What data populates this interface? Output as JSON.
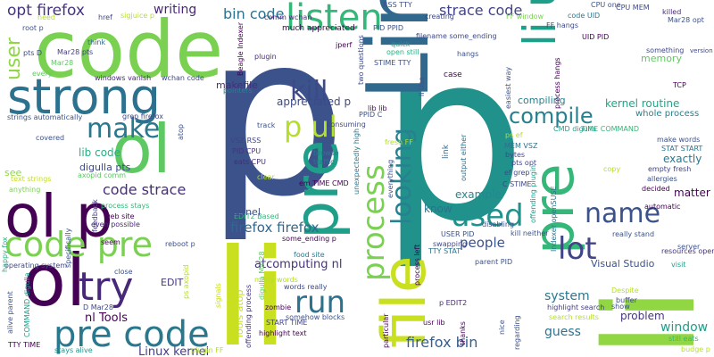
{
  "cloud": {
    "words": [
      {
        "text": "p",
        "color": "#3b528b"
      },
      {
        "text": "p",
        "color": "#21918c"
      },
      {
        "text": "li",
        "color": "#c8e020"
      },
      {
        "text": "li",
        "color": "#90d743"
      },
      {
        "text": "code",
        "color": "#7ad151"
      },
      {
        "text": "Linux",
        "color": "#31688e"
      },
      {
        "text": "ol",
        "color": "#5ec962"
      },
      {
        "text": "ol",
        "color": "#440154"
      },
      {
        "text": "ol p",
        "color": "#440154"
      },
      {
        "text": "pre",
        "color": "#1f9e89"
      },
      {
        "text": "pre",
        "color": "#35b779"
      },
      {
        "text": "strong",
        "color": "#2c728e"
      },
      {
        "text": "code pre",
        "color": "#7ad151"
      },
      {
        "text": "pre code",
        "color": "#2a788e"
      },
      {
        "text": "file",
        "color": "#c8e020"
      },
      {
        "text": "try",
        "color": "#482878"
      },
      {
        "text": "li ul",
        "color": "#1f9e89"
      },
      {
        "text": "listen",
        "color": "#35b779"
      },
      {
        "text": "kill",
        "color": "#3e4989"
      },
      {
        "text": "make",
        "color": "#2a788e"
      },
      {
        "text": "compile",
        "color": "#27808e"
      },
      {
        "text": "p ul",
        "color": "#b5de2b"
      },
      {
        "text": "run",
        "color": "#2c728e"
      },
      {
        "text": "process",
        "color": "#7ad151"
      },
      {
        "text": "looking",
        "color": "#26828e"
      },
      {
        "text": "used",
        "color": "#21918c"
      },
      {
        "text": "name",
        "color": "#3b528b"
      },
      {
        "text": "lot",
        "color": "#414487"
      },
      {
        "text": "user",
        "color": "#90d743"
      },
      {
        "text": "opt firefox",
        "color": "#46337e"
      },
      {
        "text": "writing",
        "color": "#482878"
      },
      {
        "text": "bin code",
        "color": "#2c728e"
      },
      {
        "text": "strace code",
        "color": "#414487"
      },
      {
        "text": "code strace",
        "color": "#472d7b"
      },
      {
        "text": "firefox firefox",
        "color": "#31688e"
      },
      {
        "text": "firefox bin",
        "color": "#355f8d"
      },
      {
        "text": "nl Tools",
        "color": "#440154"
      },
      {
        "text": "Linux kernel",
        "color": "#433e85"
      },
      {
        "text": "atcomputing nl",
        "color": "#46337e"
      },
      {
        "text": "people",
        "color": "#3b528b"
      },
      {
        "text": "system",
        "color": "#2a788e"
      },
      {
        "text": "guess",
        "color": "#2c728e"
      },
      {
        "text": "window",
        "color": "#1f9e89"
      },
      {
        "text": "problem",
        "color": "#46337e"
      },
      {
        "text": "kernel routine",
        "color": "#20a486"
      },
      {
        "text": "whole process",
        "color": "#26828e"
      },
      {
        "text": "example",
        "color": "#23898e"
      },
      {
        "text": "know",
        "color": "#2c728e"
      },
      {
        "text": "exactly",
        "color": "#2a788e"
      },
      {
        "text": "makefile",
        "color": "#472d7b"
      },
      {
        "text": "appreciated p",
        "color": "#3e4989"
      },
      {
        "text": "lib code",
        "color": "#29af7f"
      },
      {
        "text": "digulla pts",
        "color": "#3e4989"
      },
      {
        "text": "EDIT",
        "color": "#443983"
      },
      {
        "text": "matter",
        "color": "#440154"
      },
      {
        "text": "memory",
        "color": "#5ec962"
      },
      {
        "text": "compiling",
        "color": "#26828e"
      },
      {
        "text": "Visual Studio",
        "color": "#3b528b"
      },
      {
        "text": "Tools atop",
        "color": "#c8e020"
      },
      {
        "text": "much appreciated",
        "color": "#440154"
      },
      {
        "text": "CPU MEM",
        "color": "#3e4989"
      },
      {
        "text": "killed",
        "color": "#482878"
      },
      {
        "text": "Mar28 opt",
        "color": "#3b528b"
      },
      {
        "text": "version",
        "color": "#3e4989"
      },
      {
        "text": "code UID",
        "color": "#2a788e"
      },
      {
        "text": "UID PID",
        "color": "#440154"
      },
      {
        "text": "FF window",
        "color": "#7ad151"
      },
      {
        "text": "FF hangs",
        "color": "#3e4989"
      },
      {
        "text": "RSS TTY",
        "color": "#3b528b"
      },
      {
        "text": "comm wchan",
        "color": "#482878"
      },
      {
        "text": "creating",
        "color": "#3e4989"
      },
      {
        "text": "PID PPID",
        "color": "#3b528b"
      },
      {
        "text": "filename some_ending",
        "color": "#3e4989"
      },
      {
        "text": "STIME TTY",
        "color": "#3b528b"
      },
      {
        "text": "quick",
        "color": "#1f9e89"
      },
      {
        "text": "open still",
        "color": "#29af7f"
      },
      {
        "text": "hangs",
        "color": "#3b528b"
      },
      {
        "text": "case",
        "color": "#440154"
      },
      {
        "text": "link",
        "color": "#31688e"
      },
      {
        "text": "windows vanish",
        "color": "#482878"
      },
      {
        "text": "wchan code",
        "color": "#3e4989"
      },
      {
        "text": "plugin",
        "color": "#472d7b"
      },
      {
        "text": "think",
        "color": "#31688e"
      },
      {
        "text": "Mar28 pts",
        "color": "#433e85"
      },
      {
        "text": "pts D",
        "color": "#3e4989"
      },
      {
        "text": "every",
        "color": "#5ec962"
      },
      {
        "text": "need",
        "color": "#b5de2b"
      },
      {
        "text": "root p",
        "color": "#3b528b"
      },
      {
        "text": "href",
        "color": "#3e4989"
      },
      {
        "text": "sigjuice p",
        "color": "#b5de2b"
      },
      {
        "text": "strings automatically",
        "color": "#3b528b"
      },
      {
        "text": "grep firefox",
        "color": "#3e4989"
      },
      {
        "text": "pointers",
        "color": "#26828e"
      },
      {
        "text": "Beagle Indexer",
        "color": "#440154"
      },
      {
        "text": "axopid comm",
        "color": "#5ec962"
      },
      {
        "text": "text strings",
        "color": "#c8e020"
      },
      {
        "text": "process stays",
        "color": "#35b779"
      },
      {
        "text": "web site",
        "color": "#440154"
      },
      {
        "text": "even possible",
        "color": "#482878"
      },
      {
        "text": "VSZ RSS",
        "color": "#414487"
      },
      {
        "text": "PID CPU",
        "color": "#46337e"
      },
      {
        "text": "eats CPU",
        "color": "#472d7b"
      },
      {
        "text": "browse",
        "color": "#2a788e"
      },
      {
        "text": "traffic",
        "color": "#2c728e"
      },
      {
        "text": "em TIME CMD",
        "color": "#440154"
      },
      {
        "text": "EDIT2 Based",
        "color": "#35b779"
      },
      {
        "text": "some_ending p",
        "color": "#440154"
      },
      {
        "text": "food site",
        "color": "#2a788e"
      },
      {
        "text": "reboot p",
        "color": "#3b528b"
      },
      {
        "text": "operating system",
        "color": "#3e4989"
      },
      {
        "text": "alive parent",
        "color": "#3b528b"
      },
      {
        "text": "COMMAND digulla",
        "color": "#1f9e89"
      },
      {
        "text": "D Mar28",
        "color": "#3e4989"
      },
      {
        "text": "TTY TIME",
        "color": "#440154"
      },
      {
        "text": "stays alive",
        "color": "#21918c"
      },
      {
        "text": "close",
        "color": "#3b528b"
      },
      {
        "text": "plugin FF",
        "color": "#b5de2b"
      },
      {
        "text": "highlight text",
        "color": "#440154"
      },
      {
        "text": "words really",
        "color": "#3e4989"
      },
      {
        "text": "START TIME",
        "color": "#414487"
      },
      {
        "text": "somehow blocks",
        "color": "#3b528b"
      },
      {
        "text": "many words",
        "color": "#b5de2b"
      },
      {
        "text": "zombie",
        "color": "#440154"
      },
      {
        "text": "offending process",
        "color": "#46337e"
      },
      {
        "text": "digulla Mar28",
        "color": "#5ec962"
      },
      {
        "text": "TTY STAT",
        "color": "#2c728e"
      },
      {
        "text": "USER PID",
        "color": "#3b528b"
      },
      {
        "text": "parent PID",
        "color": "#3b528b"
      },
      {
        "text": "p EDIT2",
        "color": "#482878"
      },
      {
        "text": "usr lib",
        "color": "#440154"
      },
      {
        "text": "highlight search",
        "color": "#433e85"
      },
      {
        "text": "search results",
        "color": "#b5de2b"
      },
      {
        "text": "resources open",
        "color": "#46337e"
      },
      {
        "text": "really stand",
        "color": "#3b528b"
      },
      {
        "text": "kill neither",
        "color": "#3b528b"
      },
      {
        "text": "visit",
        "color": "#1f9e89"
      },
      {
        "text": "automatic",
        "color": "#440154"
      },
      {
        "text": "allergies",
        "color": "#3b528b"
      },
      {
        "text": "empty fresh",
        "color": "#414487"
      },
      {
        "text": "make words",
        "color": "#3b528b"
      },
      {
        "text": "STAT START",
        "color": "#2c728e"
      },
      {
        "text": "TIME COMMAND",
        "color": "#35b779"
      },
      {
        "text": "CMD digulla",
        "color": "#1f9e89"
      },
      {
        "text": "MEM VSZ",
        "color": "#2c728e"
      },
      {
        "text": "pts opt",
        "color": "#414487"
      },
      {
        "text": "ef grep",
        "color": "#3e4989"
      },
      {
        "text": "C STIME",
        "color": "#3e4989"
      },
      {
        "text": "copy",
        "color": "#b5de2b"
      },
      {
        "text": "decided",
        "color": "#440154"
      },
      {
        "text": "server",
        "color": "#3b528b"
      },
      {
        "text": "still eats",
        "color": "#35b779"
      },
      {
        "text": "budge p",
        "color": "#b5de2b"
      },
      {
        "text": "buffer",
        "color": "#3e4989"
      },
      {
        "text": "show",
        "color": "#3b528b"
      },
      {
        "text": "Despite",
        "color": "#b5de2b"
      },
      {
        "text": "TCP",
        "color": "#440154"
      },
      {
        "text": "something",
        "color": "#3e4989"
      },
      {
        "text": "fresh FF",
        "color": "#b5de2b"
      },
      {
        "text": "lib lib",
        "color": "#440154"
      },
      {
        "text": "PPID C",
        "color": "#3b528b"
      },
      {
        "text": "consuming",
        "color": "#3e4989"
      },
      {
        "text": "track",
        "color": "#3b528b"
      },
      {
        "text": "clear",
        "color": "#b5de2b"
      },
      {
        "text": "anything",
        "color": "#7ad151"
      },
      {
        "text": "seem",
        "color": "#440154"
      },
      {
        "text": "feedback",
        "color": "#433e85"
      },
      {
        "text": "covered",
        "color": "#3b528b"
      },
      {
        "text": "atop",
        "color": "#3b528b"
      },
      {
        "text": "see",
        "color": "#90d743"
      },
      {
        "text": "kernel",
        "color": "#3b528b"
      },
      {
        "text": "process left",
        "color": "#440154"
      },
      {
        "text": "process hangs",
        "color": "#440154"
      },
      {
        "text": "happy fox",
        "color": "#29af7f"
      },
      {
        "text": "specifically",
        "color": "#3b528b"
      },
      {
        "text": "signals",
        "color": "#c8e020"
      },
      {
        "text": "ps axopid",
        "color": "#b5de2b"
      },
      {
        "text": "Mar28",
        "color": "#5ec962"
      },
      {
        "text": "two questions",
        "color": "#3e4989"
      },
      {
        "text": "jperf",
        "color": "#440154"
      },
      {
        "text": "disabling",
        "color": "#3b528b"
      },
      {
        "text": "Indexer openSUSE",
        "color": "#2a788e"
      },
      {
        "text": "offending plugin",
        "color": "#1f9e89"
      },
      {
        "text": "easiest way",
        "color": "#3b528b"
      },
      {
        "text": "output either",
        "color": "#2c728e"
      },
      {
        "text": "unexpectedly high",
        "color": "#2a788e"
      },
      {
        "text": "everything",
        "color": "#3b528b"
      },
      {
        "text": "thanks",
        "color": "#440154"
      },
      {
        "text": "particular",
        "color": "#440154"
      },
      {
        "text": "swapping",
        "color": "#3e4989"
      },
      {
        "text": "regarding",
        "color": "#3b528b"
      },
      {
        "text": "nice",
        "color": "#3b528b"
      },
      {
        "text": "li Use",
        "color": "#3b528b"
      },
      {
        "text": "bytes",
        "color": "#3e4989"
      },
      {
        "text": "ps ef",
        "color": "#b5de2b"
      },
      {
        "text": "CPU one",
        "color": "#3b528b"
      }
    ]
  }
}
